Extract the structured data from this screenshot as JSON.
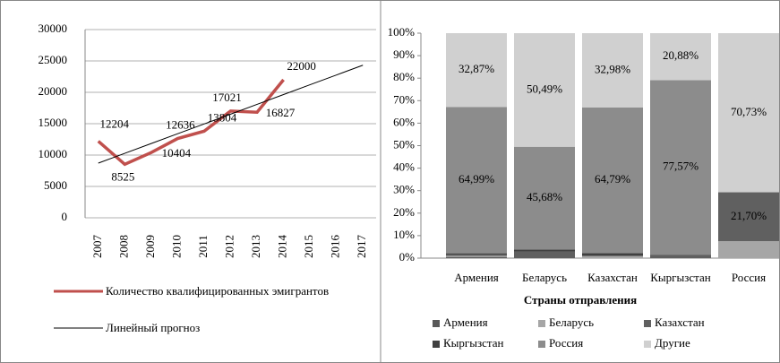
{
  "chart_data": [
    {
      "type": "line",
      "categories": [
        "2007",
        "2008",
        "2009",
        "2010",
        "2011",
        "2012",
        "2013",
        "2014",
        "2015",
        "2016",
        "2017"
      ],
      "ylim": [
        0,
        30000
      ],
      "yticks": [
        0,
        5000,
        10000,
        15000,
        20000,
        25000,
        30000
      ],
      "grid": true,
      "series": [
        {
          "name": "Количество квалифицированных эмигрантов",
          "color": "#c0504d",
          "data_labels": true,
          "values": [
            12204,
            8525,
            10404,
            12636,
            13804,
            17021,
            16827,
            22000,
            null,
            null,
            null
          ]
        },
        {
          "name": "Линейный прогноз",
          "color": "#000000",
          "data_labels": false,
          "values": [
            8715,
            10276,
            11837,
            13398,
            14958,
            16519,
            18080,
            19641,
            21202,
            22763,
            24322
          ]
        }
      ]
    },
    {
      "type": "stacked_bar",
      "x_label": "Страны отправления",
      "categories": [
        "Армения",
        "Беларусь",
        "Казахстан",
        "Кыргызстан",
        "Россия"
      ],
      "ylim": [
        0,
        100
      ],
      "yticks": [
        {
          "value": 0,
          "label": "0%"
        },
        {
          "value": 10,
          "label": "10%"
        },
        {
          "value": 20,
          "label": "20%"
        },
        {
          "value": 30,
          "label": "30%"
        },
        {
          "value": 40,
          "label": "40%"
        },
        {
          "value": 50,
          "label": "50%"
        },
        {
          "value": 60,
          "label": "60%"
        },
        {
          "value": 70,
          "label": "70%"
        },
        {
          "value": 80,
          "label": "80%"
        },
        {
          "value": 90,
          "label": "90%"
        },
        {
          "value": 100,
          "label": "100%"
        }
      ],
      "series": [
        {
          "name": "Армения",
          "color": "#595959",
          "values": [
            0.5,
            0,
            0,
            0,
            0
          ],
          "value_labels": [
            null,
            null,
            null,
            null,
            null
          ]
        },
        {
          "name": "Беларусь",
          "color": "#a6a6a6",
          "values": [
            0.5,
            0,
            1.0,
            0,
            7.57
          ],
          "value_labels": [
            null,
            null,
            null,
            null,
            null
          ]
        },
        {
          "name": "Казахстан",
          "color": "#606060",
          "values": [
            0.5,
            3.0,
            0,
            1.55,
            21.7
          ],
          "value_labels": [
            null,
            null,
            null,
            null,
            "21,70%"
          ]
        },
        {
          "name": "Кыргызстан",
          "color": "#404040",
          "values": [
            0.64,
            0.83,
            1.23,
            0,
            0
          ],
          "value_labels": [
            null,
            null,
            null,
            null,
            null
          ]
        },
        {
          "name": "Россия",
          "color": "#8c8c8c",
          "values": [
            64.99,
            45.68,
            64.79,
            77.57,
            0
          ],
          "value_labels": [
            "64,99%",
            "45,68%",
            "64,79%",
            "77,57%",
            null
          ]
        },
        {
          "name": "Другие",
          "color": "#d0d0d0",
          "values": [
            32.87,
            50.49,
            32.98,
            20.88,
            70.73
          ],
          "value_labels": [
            "32,87%",
            "50,49%",
            "32,98%",
            "20,88%",
            "70,73%"
          ]
        }
      ]
    }
  ]
}
